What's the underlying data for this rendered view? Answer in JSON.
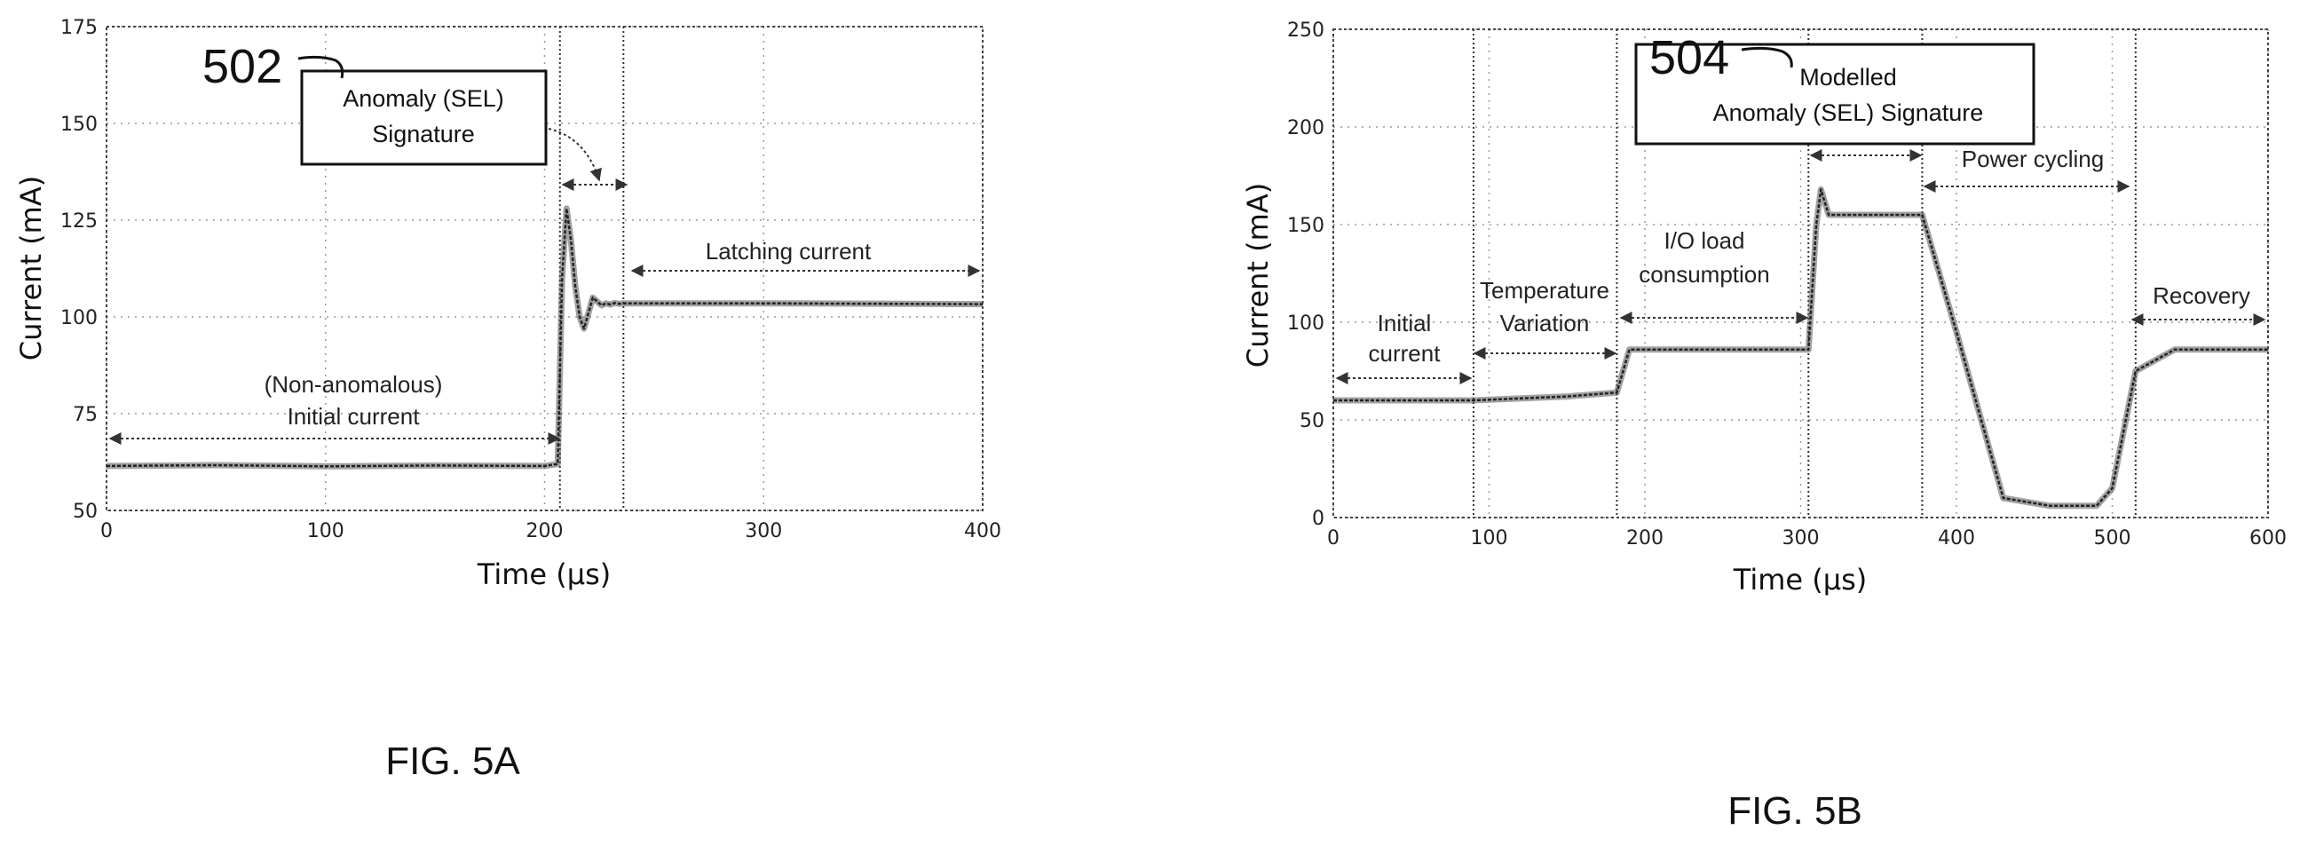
{
  "figures": [
    {
      "fig_label": "FIG. 5A",
      "ref_number": "502",
      "box_lines": [
        "Anomaly (SEL)",
        "Signature"
      ],
      "annotations": [
        {
          "lines": [
            "(Non-anomalous)",
            "Initial current"
          ]
        },
        {
          "lines": [
            "Latching current"
          ]
        }
      ]
    },
    {
      "fig_label": "FIG. 5B",
      "ref_number": "504",
      "box_lines": [
        "Modelled",
        "Anomaly (SEL) Signature"
      ],
      "annotations": [
        {
          "lines": [
            "Initial",
            "current"
          ]
        },
        {
          "lines": [
            "Temperature",
            "Variation"
          ]
        },
        {
          "lines": [
            "I/O load",
            "consumption"
          ]
        },
        {
          "lines": [
            "Power cycling"
          ]
        },
        {
          "lines": [
            "Recovery"
          ]
        }
      ]
    }
  ],
  "chart_data": [
    {
      "type": "line",
      "xlabel": "Time (μs)",
      "ylabel": "Current (mA)",
      "xlim": [
        0,
        400
      ],
      "ylim": [
        50,
        175
      ],
      "xticks": [
        0,
        100,
        200,
        300,
        400
      ],
      "yticks": [
        50,
        75,
        100,
        125,
        150,
        175
      ],
      "grid": true,
      "vlines": [
        207,
        236
      ],
      "series": [
        {
          "x": [
            0,
            50,
            100,
            150,
            200,
            206,
            208,
            210,
            212,
            214,
            216,
            218,
            220,
            222,
            224,
            226,
            228,
            230,
            232,
            234,
            236,
            240,
            300,
            400
          ],
          "y": [
            61.5,
            61.7,
            61.4,
            61.6,
            61.5,
            62,
            110,
            128,
            120,
            108,
            100,
            97,
            101,
            105,
            104,
            103,
            103.5,
            103.2,
            103.6,
            103.4,
            103.5,
            103.5,
            103.5,
            103.3
          ]
        }
      ]
    },
    {
      "type": "line",
      "xlabel": "Time (μs)",
      "ylabel": "Current (mA)",
      "xlim": [
        0,
        600
      ],
      "ylim": [
        0,
        250
      ],
      "xticks": [
        0,
        100,
        200,
        300,
        400,
        500,
        600
      ],
      "yticks": [
        0,
        50,
        100,
        150,
        200,
        250
      ],
      "grid": true,
      "vlines": [
        90,
        182,
        305,
        378,
        515
      ],
      "series": [
        {
          "x": [
            0,
            90,
            150,
            182,
            190,
            250,
            305,
            310,
            313,
            318,
            378,
            400,
            430,
            460,
            490,
            500,
            515,
            540,
            600
          ],
          "y": [
            60,
            60,
            62,
            64,
            86,
            86,
            86,
            150,
            168,
            155,
            155,
            95,
            10,
            6,
            6,
            15,
            75,
            86,
            86
          ]
        }
      ]
    }
  ]
}
